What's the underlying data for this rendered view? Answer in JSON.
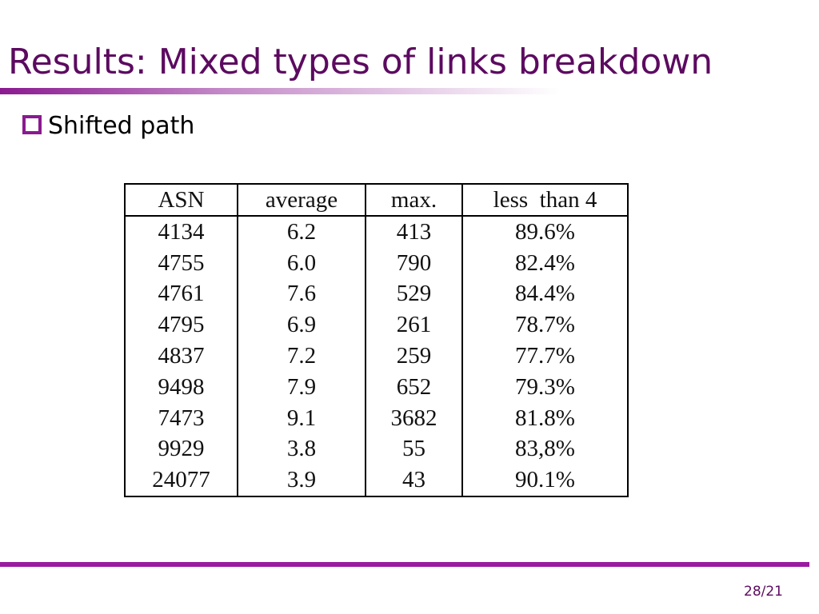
{
  "header": {
    "title": "Results: Mixed types of links breakdown"
  },
  "bullets": [
    "Shifted path"
  ],
  "table": {
    "columns": [
      "ASN",
      "average",
      "max.",
      "less  than 4"
    ],
    "rows": [
      [
        "4134",
        "6.2",
        "413",
        "89.6%"
      ],
      [
        "4755",
        "6.0",
        "790",
        "82.4%"
      ],
      [
        "4761",
        "7.6",
        "529",
        "84.4%"
      ],
      [
        "4795",
        "6.9",
        "261",
        "78.7%"
      ],
      [
        "4837",
        "7.2",
        "259",
        "77.7%"
      ],
      [
        "9498",
        "7.9",
        "652",
        "79.3%"
      ],
      [
        "7473",
        "9.1",
        "3682",
        "81.8%"
      ],
      [
        "9929",
        "3.8",
        "55",
        "83,8%"
      ],
      [
        "24077",
        "3.9",
        "43",
        "90.1%"
      ]
    ]
  },
  "footer": {
    "page": "28/21"
  }
}
